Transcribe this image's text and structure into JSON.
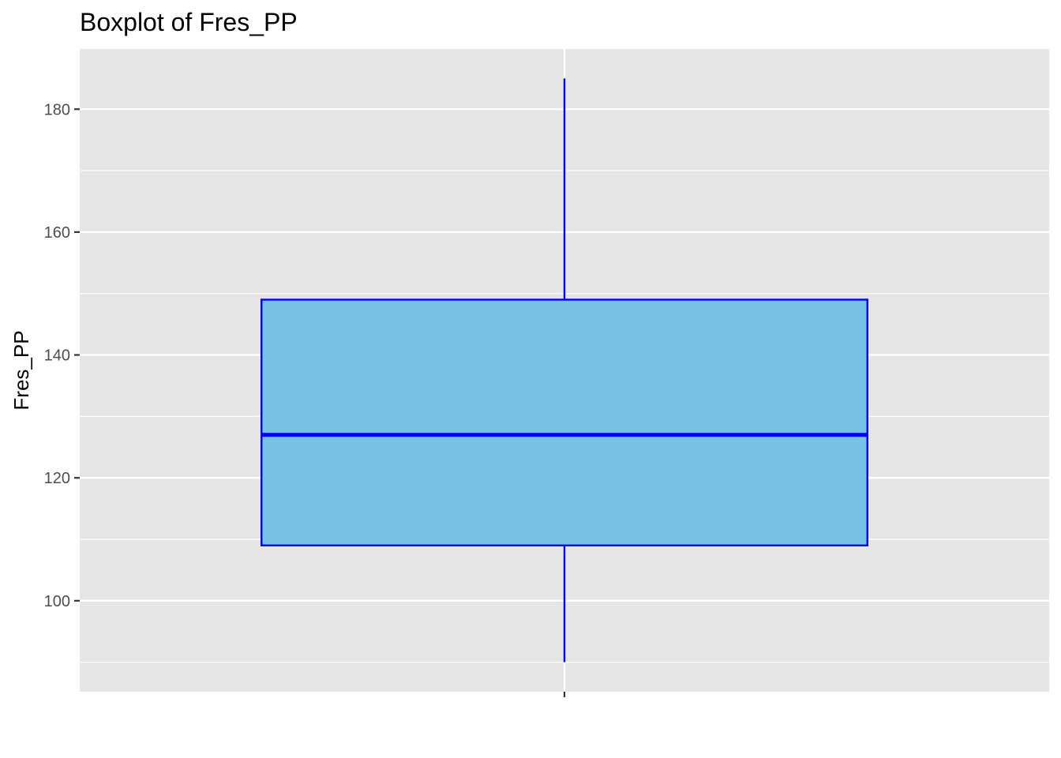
{
  "chart_data": {
    "type": "boxplot",
    "title": "Boxplot of Fres_PP",
    "xlabel": "",
    "ylabel": "Fres_PP",
    "ylim": [
      85.2,
      189.8
    ],
    "y_ticks": [
      100,
      120,
      140,
      160,
      180
    ],
    "y_tick_labels": [
      "100",
      "120",
      "140",
      "160",
      "180"
    ],
    "y_minor_ticks": [
      90,
      110,
      130,
      150,
      170
    ],
    "grid": true,
    "boxes": [
      {
        "min": 90,
        "q1": 109,
        "median": 127,
        "q3": 149,
        "max": 185
      }
    ],
    "colors": {
      "panel_background": "#e5e5e5",
      "grid": "#ffffff",
      "box_fill": "#78c2e5",
      "box_stroke": "#0000ff"
    }
  }
}
